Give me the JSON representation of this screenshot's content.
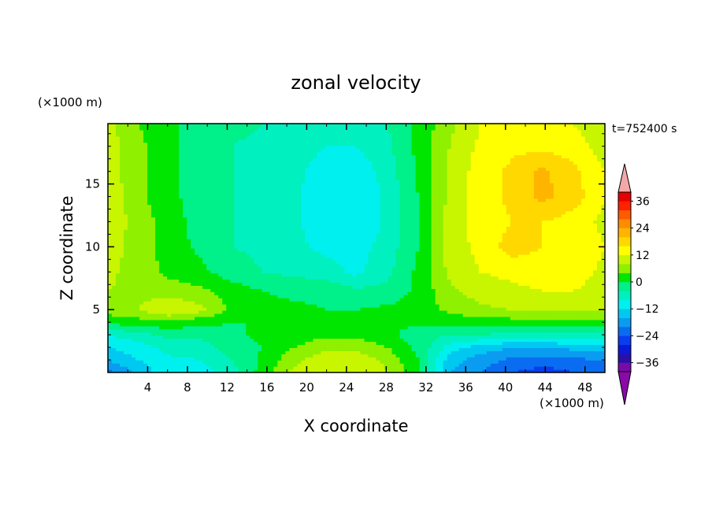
{
  "chart_data": {
    "type": "heatmap",
    "title": "zonal velocity",
    "xlabel": "X coordinate",
    "ylabel": "Z coordinate",
    "x_unit": "(×1000 m)",
    "y_unit": "(×1000 m)",
    "time_label": "t=752400 s",
    "xlim": [
      0,
      50
    ],
    "ylim": [
      0,
      19.8
    ],
    "x_ticks": [
      4,
      8,
      12,
      16,
      20,
      24,
      28,
      32,
      36,
      40,
      44,
      48
    ],
    "y_ticks": [
      5,
      10,
      15
    ],
    "colorbar": {
      "labels": [
        36,
        24,
        12,
        0,
        -12,
        -24,
        -36
      ],
      "levels": [
        -40,
        -36,
        -32,
        -28,
        -24,
        -20,
        -16,
        -12,
        -8,
        -4,
        0,
        4,
        8,
        12,
        16,
        20,
        24,
        28,
        32,
        36,
        40
      ],
      "colors": [
        "#7a0aa8",
        "#2a10a8",
        "#0a1ad8",
        "#0a3cf0",
        "#0a6cf0",
        "#0a9cf0",
        "#00c8f0",
        "#00f0f0",
        "#00f0c0",
        "#00f08a",
        "#00e600",
        "#8ff000",
        "#c8f500",
        "#ffff00",
        "#ffd800",
        "#ffb400",
        "#ff8c00",
        "#ff5a00",
        "#ff2200",
        "#e60000"
      ],
      "over_color": "#f2a8a8",
      "under_color": "#8a0aa8"
    },
    "grid": {
      "x": [
        0,
        3.125,
        6.25,
        9.375,
        12.5,
        15.625,
        18.75,
        21.875,
        25,
        28.125,
        31.25,
        34.375,
        37.5,
        40.625,
        43.75,
        46.875,
        50
      ],
      "z": [
        0,
        1,
        2,
        3,
        4,
        5,
        6.5,
        8,
        10,
        12,
        14,
        16,
        18,
        19.8
      ],
      "values": [
        [
          -22,
          -14,
          -10,
          -10,
          -6,
          2,
          9,
          12,
          12,
          8,
          1,
          -16,
          -20,
          -24,
          -26,
          -24,
          -22
        ],
        [
          -16,
          -12,
          -9,
          -8,
          -4,
          1,
          7,
          11,
          11,
          7,
          0,
          -14,
          -18,
          -21,
          -22,
          -21,
          -20
        ],
        [
          -12,
          -10,
          -6,
          -6,
          -2,
          0,
          4,
          7,
          7,
          4,
          -1,
          -10,
          -14,
          -16,
          -16,
          -15,
          -14
        ],
        [
          -8,
          -6,
          -3,
          -3,
          -1,
          1,
          2,
          3,
          3,
          1,
          -2,
          -4,
          -4,
          -6,
          -6,
          -5,
          -5
        ],
        [
          1,
          2,
          3,
          1,
          0,
          0,
          0,
          0,
          0,
          0,
          1,
          1,
          2,
          2,
          3,
          3,
          2
        ],
        [
          6,
          8,
          12,
          9,
          3,
          1,
          1,
          0,
          0,
          1,
          2,
          5,
          7,
          8,
          9,
          9,
          8
        ],
        [
          8,
          7,
          6,
          5,
          2,
          0,
          -1,
          -1,
          -3,
          -3,
          1,
          7,
          10,
          11,
          12,
          12,
          10
        ],
        [
          9,
          6,
          3,
          1,
          -2,
          -4,
          -5,
          -6,
          -9,
          -5,
          1,
          9,
          12,
          13,
          14,
          14,
          11
        ],
        [
          10,
          6,
          2,
          -1,
          -4,
          -5,
          -7,
          -9,
          -10,
          -6,
          0,
          10,
          13,
          18,
          16,
          15,
          12
        ],
        [
          11,
          6,
          2,
          -2,
          -4,
          -5,
          -7,
          -11,
          -12,
          -7,
          0,
          10,
          14,
          16,
          16,
          14,
          11
        ],
        [
          11,
          5,
          1,
          -2,
          -4,
          -5,
          -7,
          -11,
          -12,
          -7,
          0,
          9,
          14,
          17,
          21,
          18,
          12
        ],
        [
          10,
          5,
          1,
          -2,
          -4,
          -5,
          -7,
          -10,
          -11,
          -6,
          1,
          9,
          14,
          17,
          21,
          17,
          12
        ],
        [
          10,
          5,
          1,
          -2,
          -4,
          -5,
          -6,
          -8,
          -8,
          -5,
          1,
          8,
          13,
          15,
          15,
          14,
          10
        ],
        [
          9,
          4,
          1,
          -2,
          -3,
          -4,
          -5,
          -6,
          -6,
          -4,
          1,
          7,
          12,
          14,
          14,
          12,
          9
        ]
      ]
    }
  }
}
